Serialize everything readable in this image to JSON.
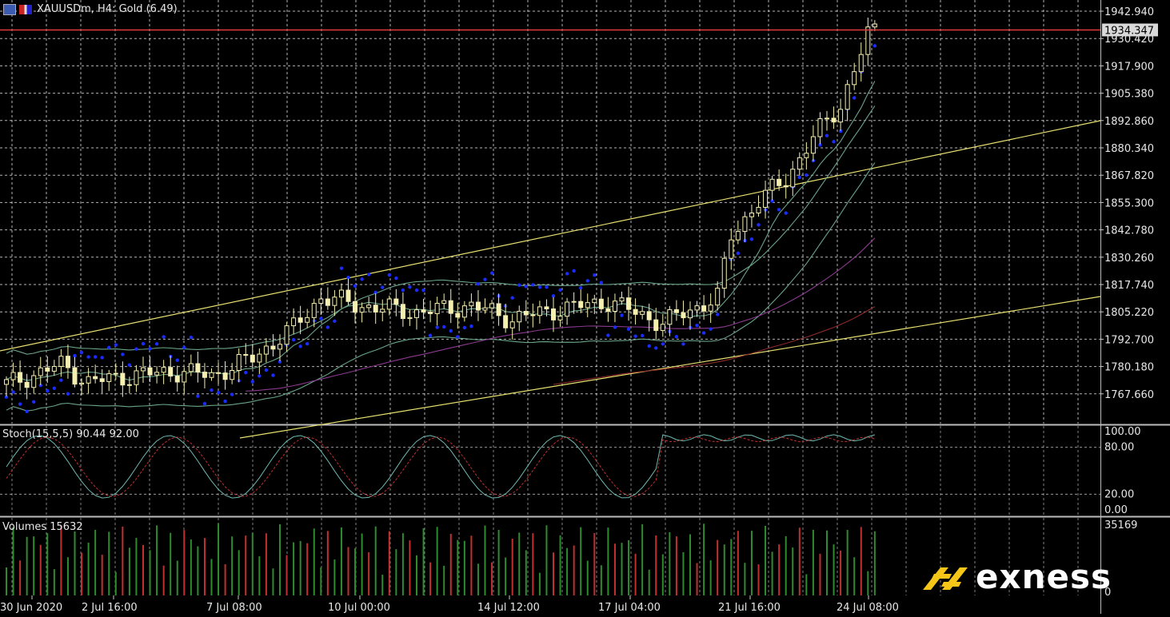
{
  "window": {
    "title": "XAUUSDm, H4:  Gold (6.49)",
    "icons": [
      "chart-window-icon",
      "flag-icon"
    ]
  },
  "price_axis": {
    "labels": [
      "1942.940",
      "1930.420",
      "1917.900",
      "1905.380",
      "1892.860",
      "1880.340",
      "1867.820",
      "1855.300",
      "1842.780",
      "1830.260",
      "1817.740",
      "1805.220",
      "1792.700",
      "1780.180",
      "1767.660"
    ],
    "current_price": "1934.347",
    "current_price_color": "#e03c3c"
  },
  "time_axis": {
    "labels": [
      "30 Jun 2020",
      "2 Jul 16:00",
      "7 Jul 08:00",
      "10 Jul 00:00",
      "14 Jul 12:00",
      "17 Jul 04:00",
      "21 Jul 16:00",
      "24 Jul 08:00"
    ]
  },
  "stochastic": {
    "label": "Stoch(15,5,5) 90.44 92.00",
    "levels": [
      "100.00",
      "80.00",
      "20.00",
      "0.00"
    ]
  },
  "volumes": {
    "label": "Volumes 15632",
    "max_label": "35169",
    "min_label": "0"
  },
  "brand": {
    "name": "exness",
    "accent": "#f5c518"
  },
  "colors": {
    "candle": "#f5f0b0",
    "sar": "#1a2cff",
    "channel": "#e8e070",
    "bollinger": "#6aa58a",
    "ma_purple": "#8a3a8f",
    "ma_red": "#8a2a2a",
    "stoch_main": "#6fb8b0",
    "stoch_signal": "#c03030",
    "vol_up": "#2e8b2e",
    "vol_down": "#c03030",
    "grid": "#ffffff"
  }
}
